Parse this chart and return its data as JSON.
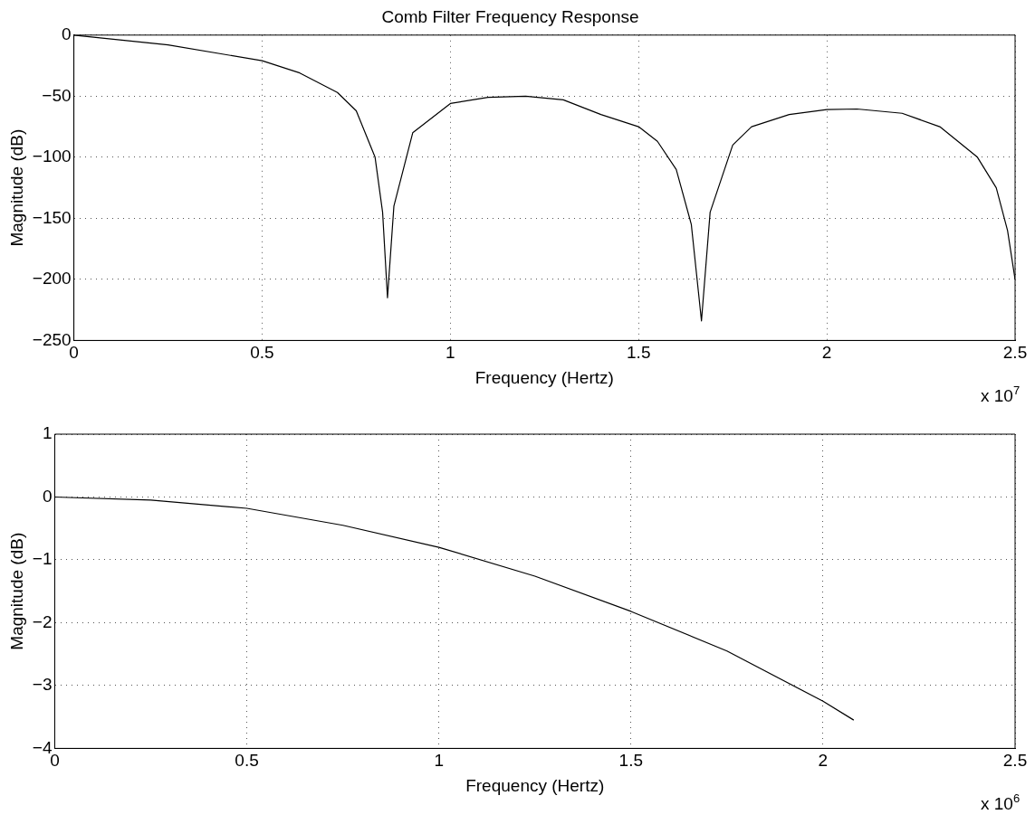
{
  "chart_data": [
    {
      "type": "line",
      "title": "Comb Filter Frequency Response",
      "xlabel": "Frequency (Hertz)",
      "ylabel": "Magnitude (dB)",
      "annotations": [
        "x 10$^{7}$"
      ],
      "color": "#000000",
      "grid": true,
      "x": [
        0,
        0.25,
        0.5,
        0.6,
        0.7,
        0.75,
        0.8,
        0.82,
        0.833,
        0.85,
        0.9,
        1.0,
        1.1,
        1.2,
        1.3,
        1.4,
        1.5,
        1.55,
        1.6,
        1.64,
        1.667,
        1.69,
        1.75,
        1.8,
        1.9,
        2.0,
        2.08,
        2.2,
        2.3,
        2.4,
        2.45,
        2.48,
        2.5
      ],
      "values": [
        0,
        -8,
        -21,
        -31,
        -47,
        -62,
        -100,
        -145,
        -215,
        -140,
        -80,
        -56,
        -51,
        -50,
        -53,
        -65,
        -75,
        -87,
        -110,
        -155,
        -234,
        -145,
        -90,
        -75,
        -65,
        -61,
        -60.5,
        -64,
        -75,
        -100,
        -125,
        -160,
        -200
      ],
      "xlim": [
        0,
        2.5
      ],
      "xticks": [
        0,
        0.5,
        1,
        1.5,
        2,
        2.5
      ],
      "ylim": [
        -250,
        0
      ],
      "yticks": [
        -250,
        -200,
        -150,
        -100,
        -50,
        0
      ]
    },
    {
      "type": "line",
      "xlabel": "Frequency (Hertz)",
      "ylabel": "Magnitude (dB)",
      "annotations": [
        "x 10$^{6}$"
      ],
      "color": "#000000",
      "grid": true,
      "x": [
        0,
        0.25,
        0.5,
        0.75,
        1.0,
        1.25,
        1.5,
        1.75,
        2.0,
        2.08
      ],
      "values": [
        0,
        -0.05,
        -0.18,
        -0.45,
        -0.8,
        -1.26,
        -1.82,
        -2.45,
        -3.25,
        -3.55
      ],
      "xlim": [
        0,
        2.5
      ],
      "xticks": [
        0,
        0.5,
        1,
        1.5,
        2,
        2.5
      ],
      "ylim": [
        -4,
        1
      ],
      "yticks": [
        -4,
        -3,
        -2,
        -1,
        0,
        1
      ]
    }
  ]
}
